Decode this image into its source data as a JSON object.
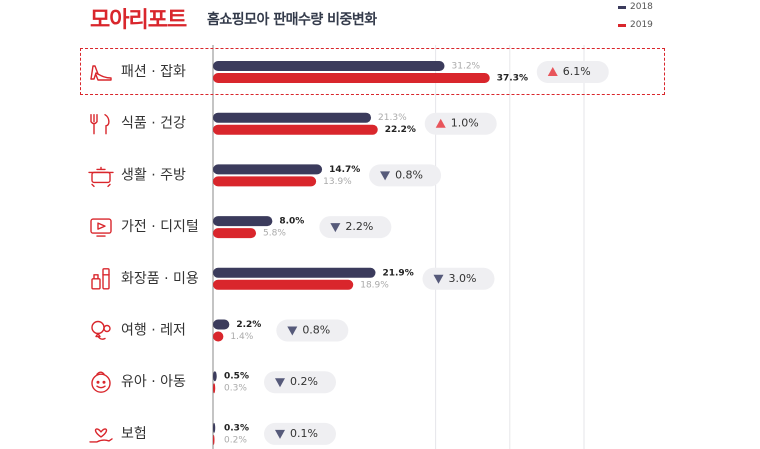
{
  "header": {
    "brand": "모아리포트",
    "subtitle": "홈쇼핑모아 판매수량 비중변화"
  },
  "legend": [
    {
      "label": "2018",
      "color": "#3b3b5c"
    },
    {
      "label": "2019",
      "color": "#d9262c"
    }
  ],
  "colors": {
    "series_2018": "#3b3b5c",
    "series_2019": "#d9262c",
    "up": "#e8555b",
    "down": "#565a7a",
    "badge_bg": "#efeff2",
    "highlight": "#d9262c"
  },
  "chart_data": {
    "type": "bar",
    "orientation": "horizontal",
    "title": "홈쇼핑모아 판매수량 비중변화",
    "categories": [
      "패션 · 잡화",
      "식품 · 건강",
      "생활 · 주방",
      "가전 · 디지털",
      "화장품 · 미용",
      "여행 · 레저",
      "유아 · 아동",
      "보험"
    ],
    "icons": [
      "high-heel-icon",
      "fork-knife-icon",
      "cooking-pot-icon",
      "tv-play-icon",
      "cosmetics-icon",
      "balloon-icon",
      "baby-face-icon",
      "hand-heart-icon"
    ],
    "series": [
      {
        "name": "2018",
        "values": [
          31.2,
          21.3,
          14.7,
          8.0,
          21.9,
          2.2,
          0.5,
          0.3
        ],
        "labels": [
          "31.2%",
          "21.3%",
          "14.7%",
          "8.0%",
          "21.9%",
          "2.2%",
          "0.5%",
          "0.3%"
        ]
      },
      {
        "name": "2019",
        "values": [
          37.3,
          22.2,
          13.9,
          5.8,
          18.9,
          1.4,
          0.3,
          0.2
        ],
        "labels": [
          "37.3%",
          "22.2%",
          "13.9%",
          "5.8%",
          "18.9%",
          "1.4%",
          "0.3%",
          "0.2%"
        ]
      }
    ],
    "changes": [
      {
        "direction": "up",
        "value": "6.1%"
      },
      {
        "direction": "up",
        "value": "1.0%"
      },
      {
        "direction": "down",
        "value": "0.8%"
      },
      {
        "direction": "down",
        "value": "2.2%"
      },
      {
        "direction": "down",
        "value": "3.0%"
      },
      {
        "direction": "down",
        "value": "0.8%"
      },
      {
        "direction": "down",
        "value": "0.2%"
      },
      {
        "direction": "down",
        "value": "0.1%"
      }
    ],
    "highlighted_category": "패션 · 잡화",
    "xlim": [
      0,
      55
    ],
    "grid": true,
    "legend_position": "top-right"
  }
}
